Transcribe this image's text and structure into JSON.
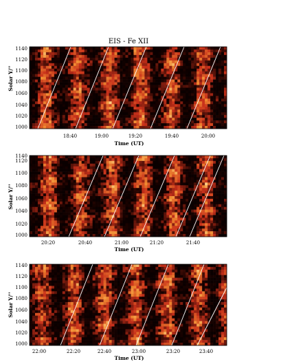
{
  "figure": {
    "title": "EIS - Fe XII"
  },
  "colors": {
    "accent_dark": "#1a0200",
    "accent_mid": "#c8301a",
    "accent_light": "#ffe7a3",
    "track": "#ffffff"
  },
  "chart_data": [
    {
      "type": "heatmap",
      "ylabel": "Solar Y/''",
      "xlabel": "Time (UT)",
      "yticks": [
        "1000",
        "1020",
        "1040",
        "1060",
        "1080",
        "1100",
        "1120",
        "1140"
      ],
      "ylim": [
        1000,
        1145
      ],
      "xticks": [
        "18:40",
        "19:00",
        "19:20",
        "19:40",
        "20:00"
      ],
      "seed": 11
    },
    {
      "type": "heatmap",
      "ylabel": "Solar Y/''",
      "xlabel": "Time (UT)",
      "yticks": [
        "1000",
        "1020",
        "1040",
        "1060",
        "1080",
        "1100",
        "1120",
        "1140"
      ],
      "ylim": [
        1000,
        1145
      ],
      "xticks": [
        "20:20",
        "20:40",
        "21:00",
        "21:20",
        "21:40"
      ],
      "seed": 23
    },
    {
      "type": "heatmap",
      "ylabel": "Solar Y/''",
      "xlabel": "Time (UT)",
      "yticks": [
        "1000",
        "1020",
        "1040",
        "1060",
        "1080",
        "1100",
        "1120",
        "1140"
      ],
      "ylim": [
        1000,
        1145
      ],
      "xticks": [
        "22:00",
        "22:20",
        "22:40",
        "23:00",
        "23:20",
        "23:40"
      ],
      "seed": 37
    }
  ]
}
